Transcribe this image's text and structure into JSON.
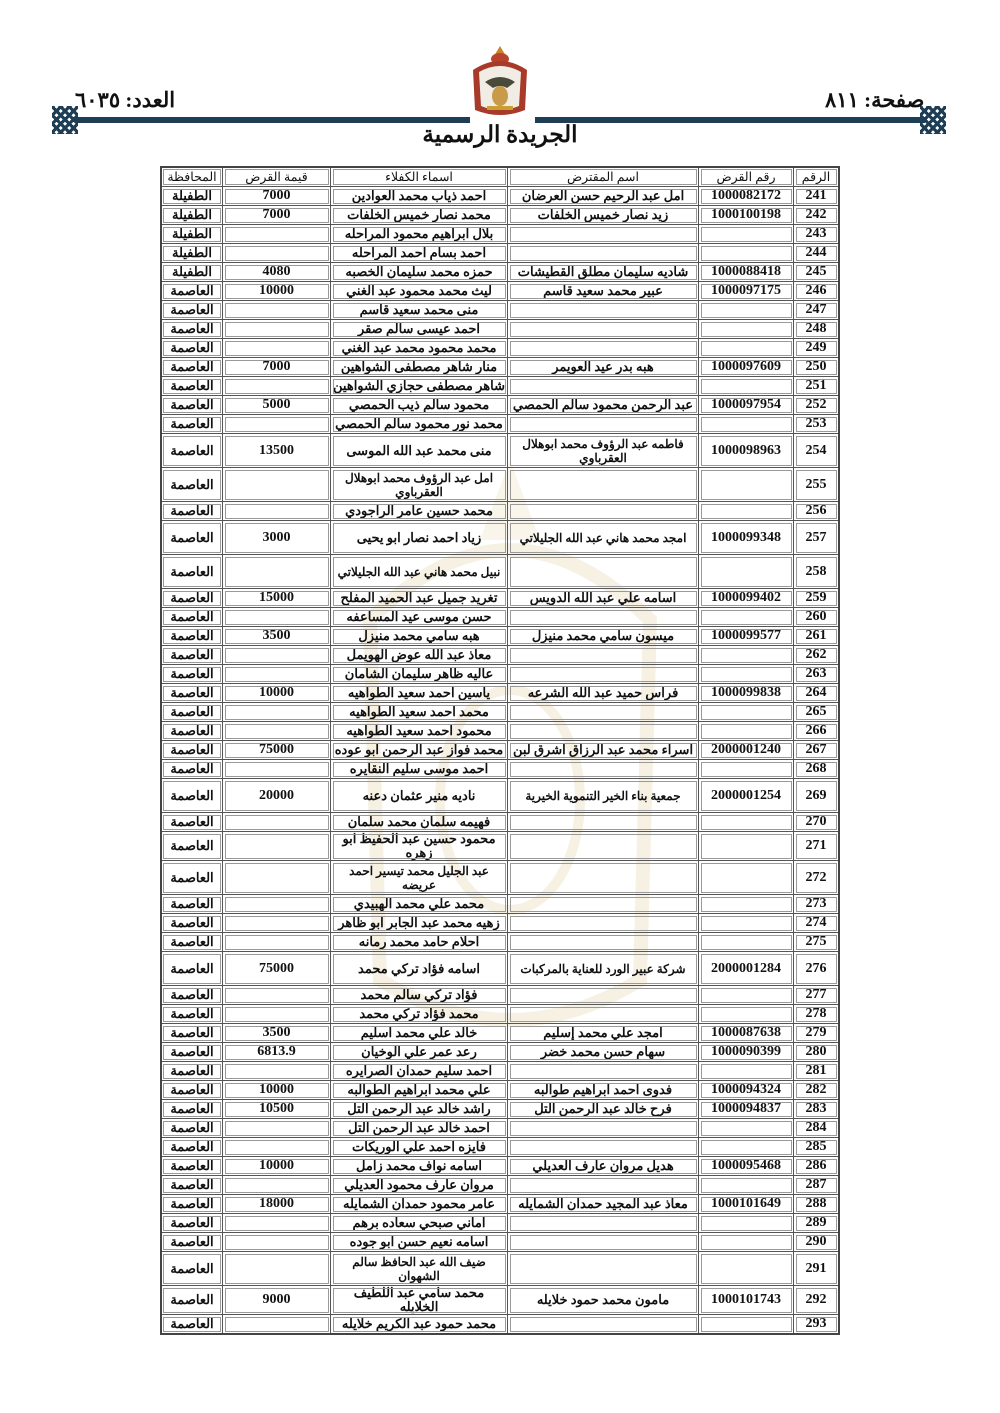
{
  "header": {
    "page_label": "صفحة: ٨١١",
    "issue_label": "العدد: ٦٠٣٥",
    "title": "الجريدة الرسمية",
    "accent_color": "#1d3e55"
  },
  "table": {
    "columns": [
      "الرقم",
      "رقم القرض",
      "اسم المقترض",
      "اسماء الكفلاء",
      "قيمة القرض",
      "المحافظة"
    ],
    "rows": [
      [
        "241",
        "1000082172",
        "امل عبد الرحيم حسن العرضان",
        "احمد ذياب محمد العوادين",
        "7000",
        "الطفيلة"
      ],
      [
        "242",
        "1000100198",
        "زيد نصار خميس الخلفات",
        "محمد نصار خميس الخلفات",
        "7000",
        "الطفيلة"
      ],
      [
        "243",
        "",
        "",
        "بلال ابراهيم محمود المراحله",
        "",
        "الطفيلة"
      ],
      [
        "244",
        "",
        "",
        "احمد بسام احمد المراحله",
        "",
        "الطفيلة"
      ],
      [
        "245",
        "1000088418",
        "شاديه سليمان مطلق القطيشات",
        "حمزه محمد سليمان الخصبه",
        "4080",
        "الطفيلة"
      ],
      [
        "246",
        "1000097175",
        "عبير محمد سعيد قاسم",
        "ليث محمد محمود عبد الغني",
        "10000",
        "العاصمة"
      ],
      [
        "247",
        "",
        "",
        "منى محمد سعيد قاسم",
        "",
        "العاصمة"
      ],
      [
        "248",
        "",
        "",
        "احمد عيسى سالم صقر",
        "",
        "العاصمة"
      ],
      [
        "249",
        "",
        "",
        "محمد محمود محمد عبد الغني",
        "",
        "العاصمة"
      ],
      [
        "250",
        "1000097609",
        "هبه بدر عيد العويمر",
        "منار شاهر مصطفى الشواهين",
        "7000",
        "العاصمة"
      ],
      [
        "251",
        "",
        "",
        "شاهر مصطفى حجازي الشواهين",
        "",
        "العاصمة"
      ],
      [
        "252",
        "1000097954",
        "عبد الرحمن محمود سالم الحمصي",
        "محمود سالم ذيب الحمصي",
        "5000",
        "العاصمة"
      ],
      [
        "253",
        "",
        "",
        "محمد نور محمود سالم الحمصي",
        "",
        "العاصمة"
      ],
      [
        "254",
        "1000098963",
        "فاطمه عبد الرؤوف محمد ابوهلال العقرباوي",
        "منى محمد عبد الله الموسى",
        "13500",
        "العاصمة"
      ],
      [
        "255",
        "",
        "",
        "امل عبد الرؤوف محمد ابوهلال العقرباوي",
        "",
        "العاصمة"
      ],
      [
        "256",
        "",
        "",
        "محمد حسين عامر الراجودي",
        "",
        "العاصمة"
      ],
      [
        "257",
        "1000099348",
        "امجد محمد هاني عبد الله الجليلاتي",
        "زياد احمد نصار ابو يحيى",
        "3000",
        "العاصمة"
      ],
      [
        "258",
        "",
        "",
        "نبيل محمد هاني عبد الله الجليلاتي",
        "",
        "العاصمة"
      ],
      [
        "259",
        "1000099402",
        "اسامه علي عبد الله الدويس",
        "تغريد جميل عبد الحميد المفلح",
        "15000",
        "العاصمة"
      ],
      [
        "260",
        "",
        "",
        "حسن موسى عيد المساعفه",
        "",
        "العاصمة"
      ],
      [
        "261",
        "1000099577",
        "ميسون سامي محمد منيزل",
        "هبه سامي محمد منيزل",
        "3500",
        "العاصمة"
      ],
      [
        "262",
        "",
        "",
        "معاذ عبد الله عوض الهويمل",
        "",
        "العاصمة"
      ],
      [
        "263",
        "",
        "",
        "عاليه ظاهر سليمان الشامان",
        "",
        "العاصمة"
      ],
      [
        "264",
        "1000099838",
        "فراس حميد عبد الله الشرعه",
        "ياسين احمد سعيد الطواهيه",
        "10000",
        "العاصمة"
      ],
      [
        "265",
        "",
        "",
        "محمد احمد سعيد الطواهيه",
        "",
        "العاصمة"
      ],
      [
        "266",
        "",
        "",
        "محمود احمد سعيد الطواهيه",
        "",
        "العاصمة"
      ],
      [
        "267",
        "2000001240",
        "اسراء محمد عبد الرزاق اشرق لبن",
        "محمد فواز عبد الرحمن ابو عوده",
        "75000",
        "العاصمة"
      ],
      [
        "268",
        "",
        "",
        "احمد موسى سليم النقايره",
        "",
        "العاصمة"
      ],
      [
        "269",
        "2000001254",
        "جمعية بناء الخير التنموية الخيرية",
        "ناديه منير عثمان دعنه",
        "20000",
        "العاصمة"
      ],
      [
        "270",
        "",
        "",
        "فهيمه سلمان محمد سلمان",
        "",
        "العاصمة"
      ],
      [
        "271",
        "",
        "",
        "محمود حسين عبد الحفيظ ابو زهره",
        "",
        "العاصمة"
      ],
      [
        "272",
        "",
        "",
        "عبد الجليل محمد تيسير احمد عريضه",
        "",
        "العاصمة"
      ],
      [
        "273",
        "",
        "",
        "محمد علي محمد الهبيدي",
        "",
        "العاصمة"
      ],
      [
        "274",
        "",
        "",
        "زهيه محمد عبد الجابر ابو ظاهر",
        "",
        "العاصمة"
      ],
      [
        "275",
        "",
        "",
        "احلام حامد محمد رمانه",
        "",
        "العاصمة"
      ],
      [
        "276",
        "2000001284",
        "شركة عبير الورد للعناية بالمركبات",
        "اسامه فؤاد تركي محمد",
        "75000",
        "العاصمة"
      ],
      [
        "277",
        "",
        "",
        "فؤاد تركي سالم محمد",
        "",
        "العاصمة"
      ],
      [
        "278",
        "",
        "",
        "محمد فؤاد تركي محمد",
        "",
        "العاصمة"
      ],
      [
        "279",
        "1000087638",
        "امجد علي محمد إسليم",
        "خالد علي محمد اسليم",
        "3500",
        "العاصمة"
      ],
      [
        "280",
        "1000090399",
        "سهام حسن محمد خضر",
        "رعد عمر علي الوخيان",
        "6813.9",
        "العاصمة"
      ],
      [
        "281",
        "",
        "",
        "احمد سليم حمدان الصرايره",
        "",
        "العاصمة"
      ],
      [
        "282",
        "1000094324",
        "فدوى احمد ابراهيم طوالبه",
        "علي محمد ابراهيم الطوالبه",
        "10000",
        "العاصمة"
      ],
      [
        "283",
        "1000094837",
        "فرح خالد عبد الرحمن التل",
        "راشد خالد عبد الرحمن التل",
        "10500",
        "العاصمة"
      ],
      [
        "284",
        "",
        "",
        "احمد خالد عبد الرحمن التل",
        "",
        "العاصمة"
      ],
      [
        "285",
        "",
        "",
        "فايزه احمد علي الوريكات",
        "",
        "العاصمة"
      ],
      [
        "286",
        "1000095468",
        "هديل مروان عارف العديلي",
        "اسامه نواف محمد زامل",
        "10000",
        "العاصمة"
      ],
      [
        "287",
        "",
        "",
        "مروان عارف محمود العديلي",
        "",
        "العاصمة"
      ],
      [
        "288",
        "1000101649",
        "معاذ عبد المجيد حمدان الشمايله",
        "عامر محمود حمدان الشمايله",
        "18000",
        "العاصمة"
      ],
      [
        "289",
        "",
        "",
        "اماني صبحي سعاده برهم",
        "",
        "العاصمة"
      ],
      [
        "290",
        "",
        "",
        "اسامه نعيم حسن ابو جوده",
        "",
        "العاصمة"
      ],
      [
        "291",
        "",
        "",
        "ضيف الله عبد الحافظ سالم الشهوان",
        "",
        "العاصمة"
      ],
      [
        "292",
        "1000101743",
        "مامون محمد حمود خلايله",
        "محمد سامي عبد اللطيف الخلايله",
        "9000",
        "العاصمة"
      ],
      [
        "293",
        "",
        "",
        "محمد حمود عبد الكريم خلايله",
        "",
        "العاصمة"
      ]
    ]
  }
}
